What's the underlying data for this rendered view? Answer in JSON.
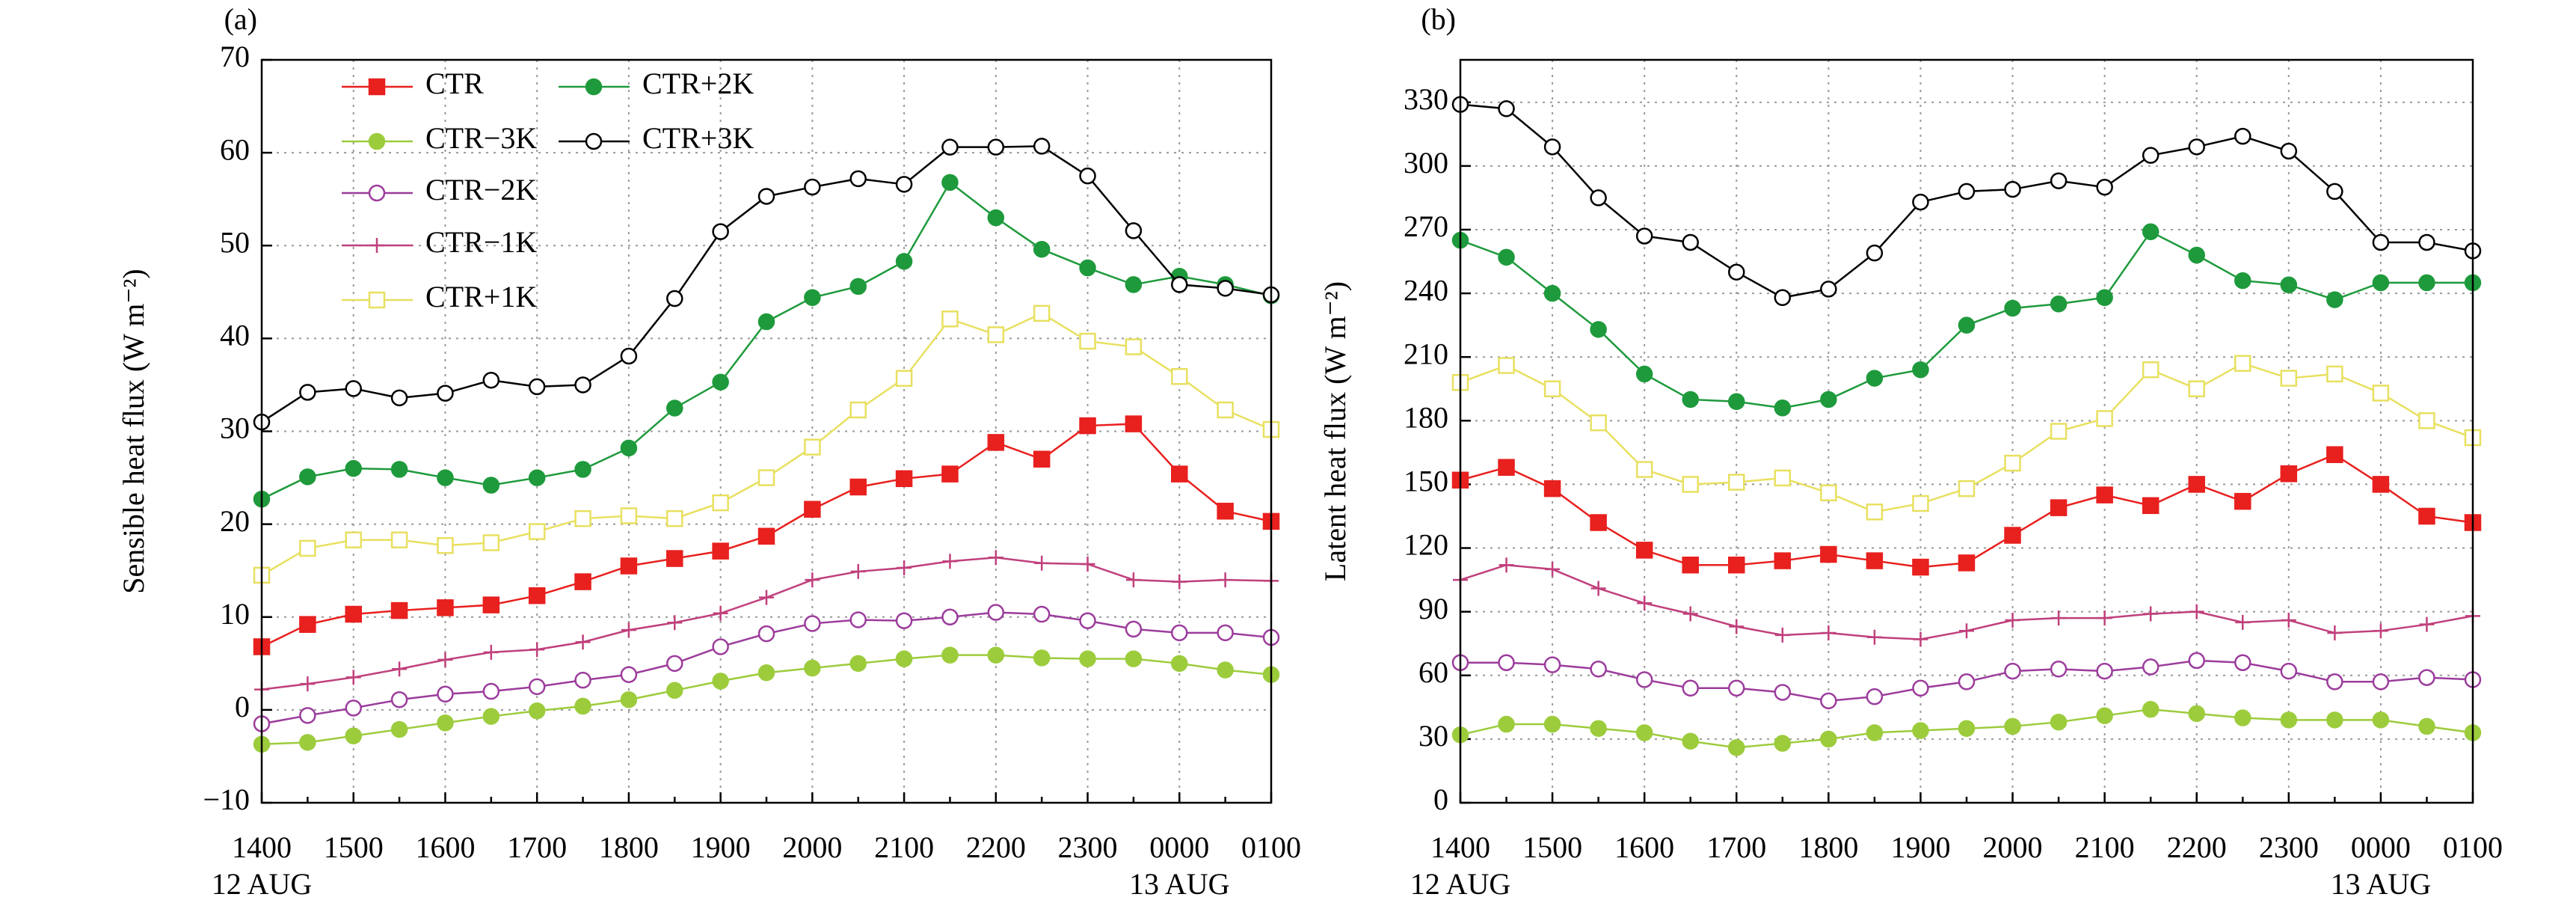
{
  "chart_data": [
    {
      "type": "line",
      "panel": "(a)",
      "ylabel": "Sensible heat flux (W m⁻²)",
      "categories": [
        "1400",
        null,
        "1500",
        null,
        "1600",
        null,
        "1700",
        null,
        "1800",
        null,
        "1900",
        null,
        "2000",
        null,
        "2100",
        null,
        "2200",
        null,
        "2300",
        null,
        "0000",
        null,
        "0100"
      ],
      "date_labels": [
        "12 AUG",
        "13 AUG"
      ],
      "ylim": [
        -10,
        70
      ],
      "yticks": [
        {
          "value": -10,
          "label": "−10"
        },
        0,
        10,
        20,
        30,
        40,
        50,
        60,
        70
      ],
      "grid": true,
      "legend": "upper left",
      "series": [
        {
          "name": "CTR",
          "color": "#e8201e",
          "marker": "square",
          "filled": true,
          "values": [
            6.8,
            9.2,
            10.3,
            10.7,
            11,
            11.3,
            12.3,
            13.8,
            15.5,
            16.3,
            17.1,
            18.7,
            21.6,
            24,
            24.9,
            25.4,
            28.8,
            27,
            30.6,
            30.8,
            25.4,
            21.4,
            20.3
          ]
        },
        {
          "name": "CTR+2K",
          "color": "#1e9a3c",
          "marker": "circle",
          "filled": true,
          "values": [
            22.7,
            25.1,
            26,
            25.9,
            25,
            24.2,
            25,
            25.9,
            28.2,
            32.5,
            35.3,
            41.8,
            44.4,
            45.6,
            48.3,
            56.8,
            53,
            49.6,
            47.6,
            45.8,
            46.7,
            45.8,
            44.6
          ]
        },
        {
          "name": "CTR−3K",
          "color": "#9ccc3c",
          "marker": "circle",
          "filled": true,
          "values": [
            -3.7,
            -3.5,
            -2.8,
            -2.1,
            -1.4,
            -0.7,
            -0.1,
            0.4,
            1.1,
            2.1,
            3.1,
            4,
            4.5,
            5,
            5.5,
            5.9,
            5.9,
            5.6,
            5.5,
            5.5,
            5,
            4.3,
            3.8
          ]
        },
        {
          "name": "CTR+3K",
          "color": "#000000",
          "marker": "circle",
          "filled": false,
          "values": [
            31,
            34.2,
            34.6,
            33.6,
            34.1,
            35.5,
            34.8,
            35,
            38.1,
            44.3,
            51.5,
            55.3,
            56.3,
            57.2,
            56.6,
            60.6,
            60.6,
            60.7,
            57.5,
            51.6,
            45.8,
            45.4,
            44.7
          ]
        },
        {
          "name": "CTR−2K",
          "color": "#9c3c9c",
          "marker": "circle",
          "filled": false,
          "values": [
            -1.5,
            -0.6,
            0.2,
            1.1,
            1.7,
            2,
            2.5,
            3.2,
            3.8,
            5,
            6.8,
            8.2,
            9.3,
            9.7,
            9.6,
            10,
            10.5,
            10.3,
            9.6,
            8.7,
            8.3,
            8.3,
            7.8
          ]
        },
        {
          "name": "CTR−1K",
          "color": "#c0407c",
          "marker": "cross",
          "filled": false,
          "values": [
            2.2,
            2.8,
            3.5,
            4.4,
            5.4,
            6.2,
            6.5,
            7.3,
            8.6,
            9.4,
            10.4,
            12.1,
            14,
            14.9,
            15.3,
            16,
            16.4,
            15.8,
            15.7,
            14,
            13.8,
            14,
            13.9
          ]
        },
        {
          "name": "CTR+1K",
          "color": "#e8e060",
          "marker": "square",
          "filled": false,
          "values": [
            14.5,
            17.4,
            18.3,
            18.3,
            17.7,
            18,
            19.2,
            20.6,
            20.9,
            20.6,
            22.3,
            25,
            28.3,
            32.3,
            35.7,
            42.1,
            40.4,
            42.7,
            39.7,
            39.1,
            35.9,
            32.3,
            30.2
          ]
        }
      ]
    },
    {
      "type": "line",
      "panel": "(b)",
      "ylabel": "Latent heat flux (W m⁻²)",
      "categories": [
        "1400",
        null,
        "1500",
        null,
        "1600",
        null,
        "1700",
        null,
        "1800",
        null,
        "1900",
        null,
        "2000",
        null,
        "2100",
        null,
        "2200",
        null,
        "2300",
        null,
        "0000",
        null,
        "0100"
      ],
      "date_labels": [
        "12 AUG",
        "13 AUG"
      ],
      "ylim": [
        0,
        350
      ],
      "yticks": [
        0,
        30,
        60,
        90,
        120,
        150,
        180,
        210,
        240,
        270,
        300,
        330
      ],
      "grid": true,
      "series": [
        {
          "color": "#e8201e",
          "marker": "square",
          "filled": true,
          "values": [
            152,
            158,
            148,
            132,
            119,
            112,
            112,
            114,
            117,
            114,
            111,
            113,
            126,
            139,
            145,
            140,
            150,
            142,
            155,
            164,
            150,
            135,
            132
          ]
        },
        {
          "color": "#1e9a3c",
          "marker": "circle",
          "filled": true,
          "values": [
            265,
            257,
            240,
            223,
            202,
            190,
            189,
            186,
            190,
            200,
            204,
            225,
            233,
            235,
            238,
            269,
            258,
            246,
            244,
            237,
            245,
            245,
            245
          ]
        },
        {
          "color": "#9ccc3c",
          "marker": "circle",
          "filled": true,
          "values": [
            32,
            37,
            37,
            35,
            33,
            29,
            26,
            28,
            30,
            33,
            34,
            35,
            36,
            38,
            41,
            44,
            42,
            40,
            39,
            39,
            39,
            36,
            33
          ]
        },
        {
          "color": "#000000",
          "marker": "circle",
          "filled": false,
          "values": [
            329,
            327,
            309,
            285,
            267,
            264,
            250,
            238,
            242,
            259,
            283,
            288,
            289,
            293,
            290,
            305,
            309,
            314,
            307,
            288,
            264,
            264,
            260
          ]
        },
        {
          "color": "#9c3c9c",
          "marker": "circle",
          "filled": false,
          "values": [
            66,
            66,
            65,
            63,
            58,
            54,
            54,
            52,
            48,
            50,
            54,
            57,
            62,
            63,
            62,
            64,
            67,
            66,
            62,
            57,
            57,
            59,
            58
          ]
        },
        {
          "color": "#c0407c",
          "marker": "cross",
          "filled": false,
          "values": [
            105,
            112,
            110,
            101,
            94,
            89,
            83,
            79,
            80,
            78,
            77,
            81,
            86,
            87,
            87,
            89,
            90,
            85,
            86,
            80,
            81,
            84,
            88
          ]
        },
        {
          "color": "#e8e060",
          "marker": "square",
          "filled": false,
          "values": [
            198,
            206,
            195,
            179,
            157,
            150,
            151,
            153,
            146,
            137,
            141,
            148,
            160,
            175,
            181,
            204,
            195,
            207,
            200,
            202,
            193,
            180,
            172
          ]
        }
      ]
    }
  ]
}
